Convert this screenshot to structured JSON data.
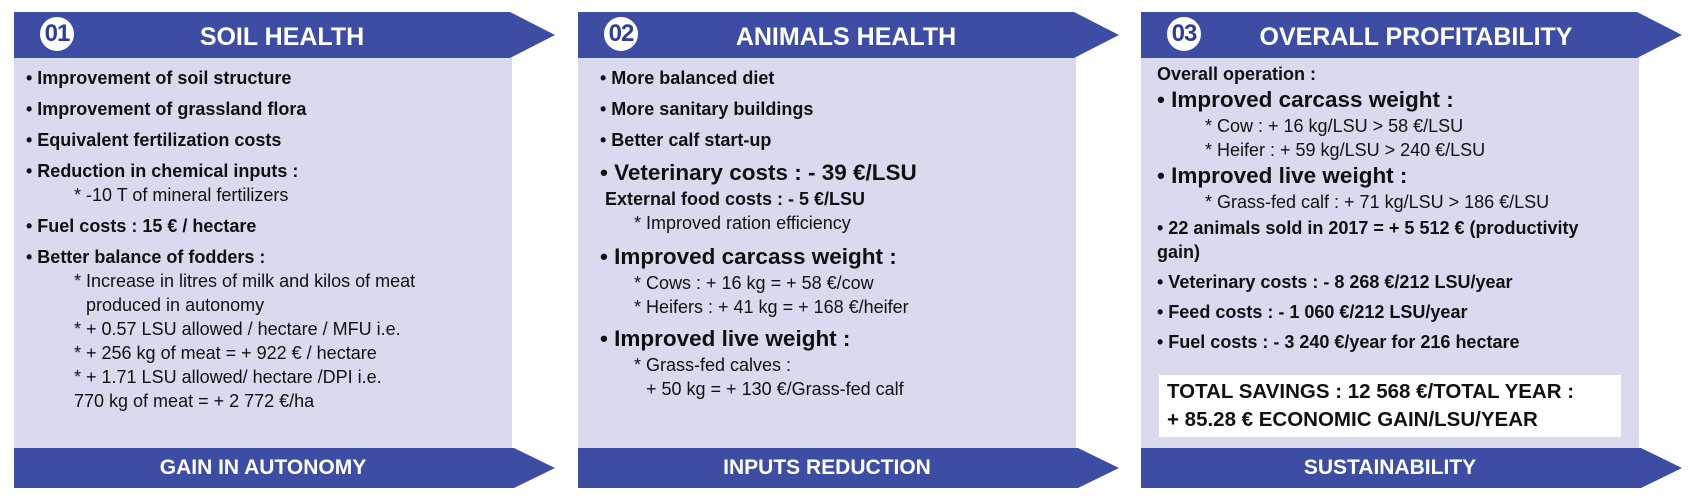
{
  "colors": {
    "banner": "#3d4da3",
    "panel": "#d9daee",
    "text": "#111111"
  },
  "panels": [
    {
      "number": "01",
      "title": "SOIL HEALTH",
      "footer": "GAIN IN AUTONOMY",
      "lines": [
        "• Improvement of soil structure",
        "• Improvement of grassland flora",
        "• Equivalent fertilization costs",
        "• Reduction in chemical inputs :",
        "* -10 T of mineral fertilizers",
        "• Fuel costs : 15 € / hectare",
        "• Better balance of fodders :",
        "* Increase in litres of milk and kilos of meat",
        "produced in autonomy",
        "* + 0.57 LSU allowed / hectare / MFU i.e.",
        "* + 256 kg of meat = + 922 € / hectare",
        "* + 1.71 LSU allowed/ hectare /DPI i.e.",
        "770 kg of meat = + 2 772 €/ha"
      ]
    },
    {
      "number": "02",
      "title": "ANIMALS HEALTH",
      "footer": "INPUTS REDUCTION",
      "lines": [
        "• More balanced diet",
        "• More sanitary buildings",
        "• Better calf start-up",
        "• Veterinary costs : - 39 €/LSU",
        "External food costs : - 5 €/LSU",
        "* Improved ration efficiency",
        "• Improved carcass weight :",
        "* Cows : + 16 kg = + 58 €/cow",
        "* Heifers : + 41 kg = + 168 €/heifer",
        "• Improved live weight :",
        "* Grass-fed calves :",
        "+ 50 kg = + 130 €/Grass-fed calf"
      ]
    },
    {
      "number": "03",
      "title": "OVERALL PROFITABILITY",
      "footer": "SUSTAINABILITY",
      "lines": [
        "Overall operation :",
        "• Improved carcass weight :",
        "* Cow : + 16 kg/LSU > 58 €/LSU",
        "* Heifer : + 59 kg/LSU > 240 €/LSU",
        "• Improved live weight :",
        "* Grass-fed calf : + 71 kg/LSU > 186 €/LSU",
        "• 22 animals sold in 2017 = + 5 512 € (productivity",
        "gain)",
        "• Veterinary costs : - 8 268 €/212 LSU/year",
        "• Feed costs : - 1 060 €/212 LSU/year",
        "• Fuel costs : - 3 240 €/year for 216 hectare"
      ],
      "savings": [
        "TOTAL SAVINGS : 12 568 €/TOTAL YEAR :",
        "+ 85.28 € ECONOMIC GAIN/LSU/YEAR"
      ]
    }
  ]
}
